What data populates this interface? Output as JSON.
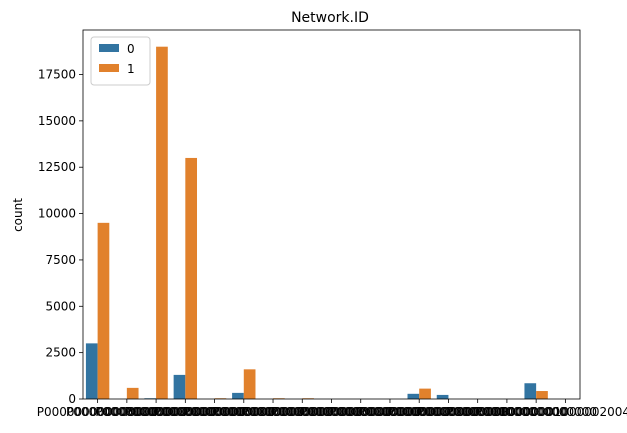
{
  "chart_data": {
    "type": "bar",
    "title": "Network.ID",
    "xlabel": "",
    "ylabel": "count",
    "ylim": [
      0,
      19900
    ],
    "yticks": [
      0,
      2500,
      5000,
      7500,
      10000,
      12500,
      15000,
      17500
    ],
    "grid": false,
    "legend_placement": "top-left",
    "categories": [
      "P000000000000000",
      "P000000000000000",
      "P000000000000000",
      "P000000000000000",
      "P000000000000000",
      "P000000000000000",
      "P000000000000000",
      "P000000000000000",
      "P000000000000000",
      "P000000000000000",
      "P000000000000000",
      "P000000000000000",
      "P000000000000000",
      "P000000000000000",
      "P000000000000000",
      "P000000000000000",
      "P0000001000002004"
    ],
    "series": [
      {
        "name": "0",
        "color": "#3274a1",
        "values": [
          3000,
          0,
          40,
          1300,
          0,
          330,
          0,
          0,
          0,
          0,
          0,
          280,
          220,
          0,
          0,
          850,
          0
        ]
      },
      {
        "name": "1",
        "color": "#e1812c",
        "values": [
          9500,
          600,
          19000,
          13000,
          40,
          1600,
          40,
          40,
          0,
          0,
          0,
          560,
          0,
          0,
          0,
          430,
          0
        ]
      }
    ]
  }
}
